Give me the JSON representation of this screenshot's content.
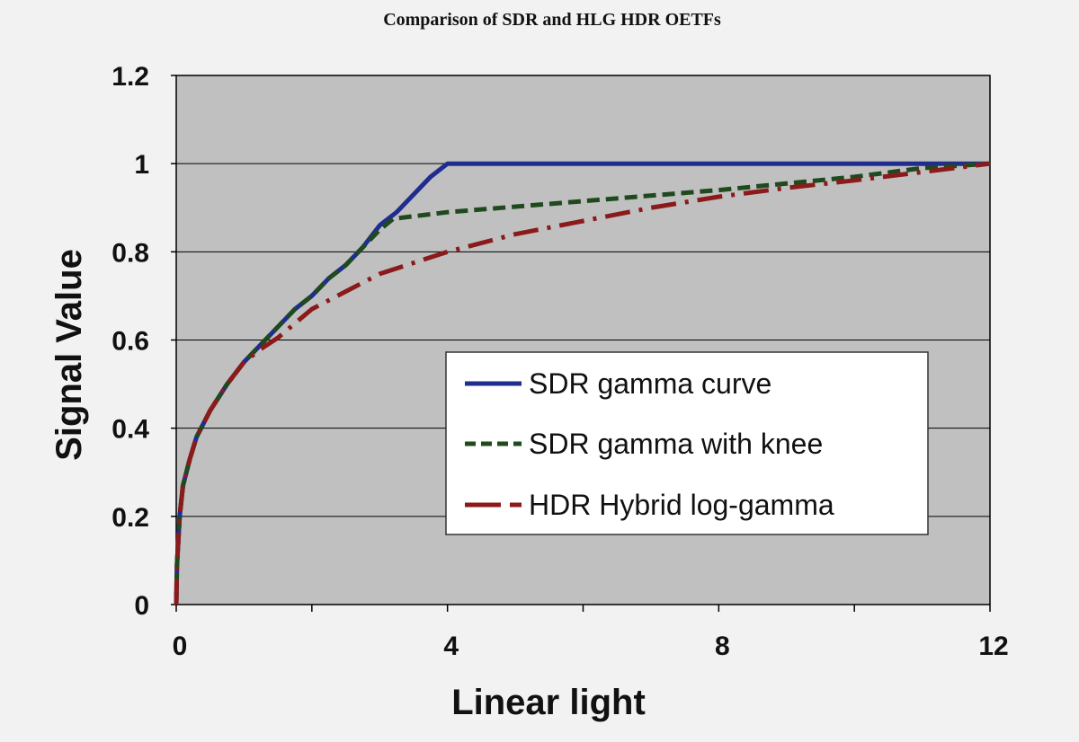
{
  "chart_data": {
    "type": "line",
    "title": "Comparison of SDR and HLG HDR OETFs",
    "xlabel": "Linear light",
    "ylabel": "Signal Value",
    "xlim": [
      0,
      12
    ],
    "ylim": [
      0,
      1.2
    ],
    "x_ticks": [
      0,
      2,
      4,
      6,
      8,
      10,
      12
    ],
    "x_tick_labels": [
      "0",
      "",
      "4",
      "",
      "8",
      "",
      "12"
    ],
    "y_ticks": [
      0,
      0.2,
      0.4,
      0.6,
      0.8,
      1,
      1.2
    ],
    "y_tick_labels": [
      "0",
      "0.2",
      "0.4",
      "0.6",
      "0.8",
      "1",
      "1.2"
    ],
    "grid": "horizontal",
    "legend_position": "center-right",
    "plot_background": "#c0c0c0",
    "series": [
      {
        "name": "SDR gamma curve",
        "color": "#1f2d8f",
        "style": "solid",
        "x": [
          0,
          0.01,
          0.05,
          0.1,
          0.2,
          0.3,
          0.5,
          0.75,
          1,
          1.25,
          1.5,
          1.75,
          2,
          2.25,
          2.5,
          2.75,
          3,
          3.25,
          3.5,
          3.75,
          4,
          12
        ],
        "y": [
          0,
          0.09,
          0.2,
          0.27,
          0.33,
          0.38,
          0.44,
          0.5,
          0.55,
          0.59,
          0.63,
          0.67,
          0.7,
          0.74,
          0.77,
          0.81,
          0.86,
          0.89,
          0.93,
          0.97,
          1,
          1
        ]
      },
      {
        "name": "SDR gamma with knee",
        "color": "#1e4a1e",
        "style": "dashed",
        "x": [
          0,
          0.01,
          0.05,
          0.1,
          0.2,
          0.3,
          0.5,
          0.75,
          1,
          1.25,
          1.5,
          1.75,
          2,
          2.25,
          2.5,
          2.75,
          3,
          3.2,
          4,
          6,
          8,
          10,
          11,
          12
        ],
        "y": [
          0,
          0.09,
          0.2,
          0.27,
          0.33,
          0.38,
          0.44,
          0.5,
          0.55,
          0.59,
          0.63,
          0.67,
          0.7,
          0.74,
          0.77,
          0.81,
          0.85,
          0.875,
          0.89,
          0.915,
          0.94,
          0.97,
          0.99,
          1
        ]
      },
      {
        "name": "HDR Hybrid log-gamma",
        "color": "#8b1a1a",
        "style": "dash-dot",
        "x": [
          0,
          0.01,
          0.05,
          0.1,
          0.2,
          0.3,
          0.5,
          0.75,
          1,
          1.25,
          1.5,
          2,
          2.5,
          3,
          4,
          5,
          6,
          7,
          8,
          9,
          10,
          11,
          12
        ],
        "y": [
          0,
          0.09,
          0.2,
          0.27,
          0.33,
          0.38,
          0.44,
          0.5,
          0.55,
          0.58,
          0.605,
          0.67,
          0.71,
          0.75,
          0.8,
          0.84,
          0.87,
          0.9,
          0.925,
          0.945,
          0.962,
          0.981,
          1
        ]
      }
    ]
  }
}
